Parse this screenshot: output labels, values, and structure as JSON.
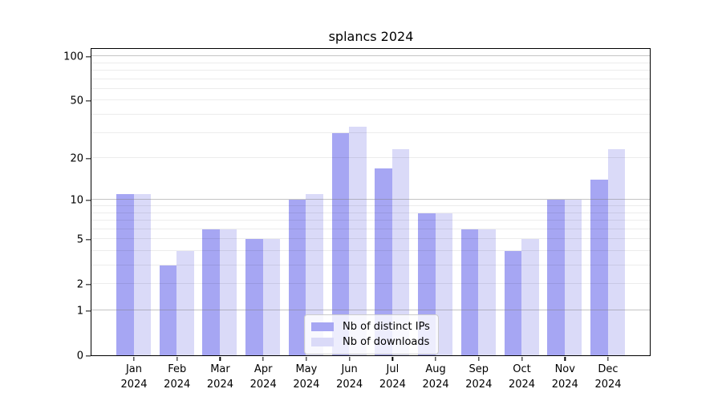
{
  "title": "splancs 2024",
  "chart_data": {
    "type": "bar",
    "title": "splancs 2024",
    "categories": [
      {
        "month": "Jan",
        "year": "2024"
      },
      {
        "month": "Feb",
        "year": "2024"
      },
      {
        "month": "Mar",
        "year": "2024"
      },
      {
        "month": "Apr",
        "year": "2024"
      },
      {
        "month": "May",
        "year": "2024"
      },
      {
        "month": "Jun",
        "year": "2024"
      },
      {
        "month": "Jul",
        "year": "2024"
      },
      {
        "month": "Aug",
        "year": "2024"
      },
      {
        "month": "Sep",
        "year": "2024"
      },
      {
        "month": "Oct",
        "year": "2024"
      },
      {
        "month": "Nov",
        "year": "2024"
      },
      {
        "month": "Dec",
        "year": "2024"
      }
    ],
    "series": [
      {
        "name": "Nb of distinct IPs",
        "color": "#a6a6f3",
        "values": [
          11,
          3,
          6,
          5,
          10,
          30,
          17,
          8,
          6,
          4,
          10,
          14
        ]
      },
      {
        "name": "Nb of downloads",
        "color": "#dadaf8",
        "values": [
          11,
          4,
          6,
          5,
          11,
          33,
          23,
          8,
          6,
          5,
          10,
          23
        ]
      }
    ],
    "y_axis": {
      "scale": "log1p",
      "tick_values": [
        0,
        1,
        2,
        5,
        10,
        20,
        50,
        100
      ],
      "range_max": 113
    },
    "grid": {
      "major_lines": [
        1,
        10,
        100
      ],
      "minor_lines": [
        2,
        3,
        4,
        5,
        6,
        7,
        8,
        9,
        20,
        30,
        40,
        50,
        60,
        70,
        80,
        90
      ],
      "grid_on": true
    },
    "legend_position": "bottom-center",
    "xlabel": "",
    "ylabel": ""
  },
  "colors": {
    "bar_distinct_ips": "#a6a6f3",
    "bar_downloads": "#dadaf8",
    "axis": "#000000",
    "major_grid": "#c6c6c6",
    "minor_grid": "#ececec",
    "legend_border": "#cccccc"
  }
}
